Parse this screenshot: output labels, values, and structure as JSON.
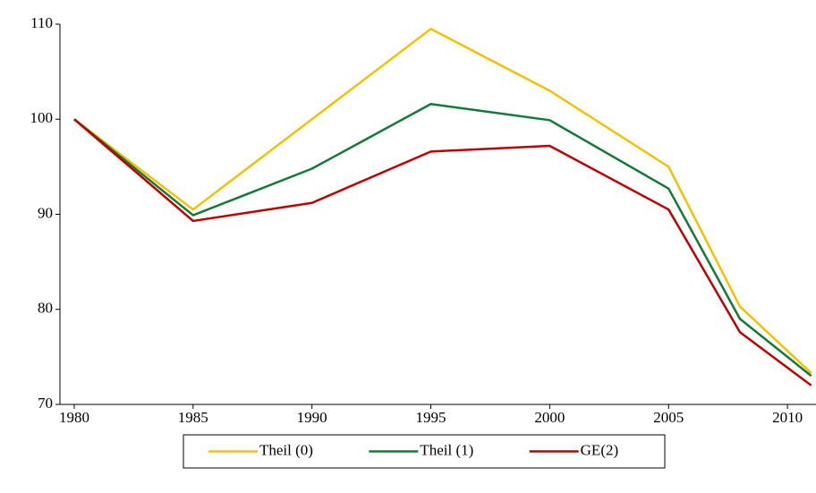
{
  "chart_data": {
    "type": "line",
    "x": [
      1980,
      1985,
      1990,
      1995,
      2000,
      2005,
      2008,
      2011
    ],
    "series": [
      {
        "name": "Theil (0)",
        "color": "#f5c000",
        "values": [
          100,
          90.5,
          100,
          109.5,
          103,
          95,
          80.3,
          73.3
        ]
      },
      {
        "name": "Theil (1)",
        "color": "#127a38",
        "values": [
          100,
          89.9,
          94.8,
          101.6,
          99.9,
          92.7,
          79,
          73
        ]
      },
      {
        "name": "GE(2)",
        "color": "#c00000",
        "values": [
          100,
          89.3,
          91.2,
          96.6,
          97.2,
          90.5,
          77.6,
          72
        ]
      }
    ],
    "xlim": [
      1979.4,
      2011.2
    ],
    "xticks": [
      1980,
      1985,
      1990,
      1995,
      2000,
      2005,
      2010
    ],
    "ylim": [
      70,
      110
    ],
    "yticks": [
      70,
      80,
      90,
      100,
      110
    ],
    "legend": "bottom"
  }
}
